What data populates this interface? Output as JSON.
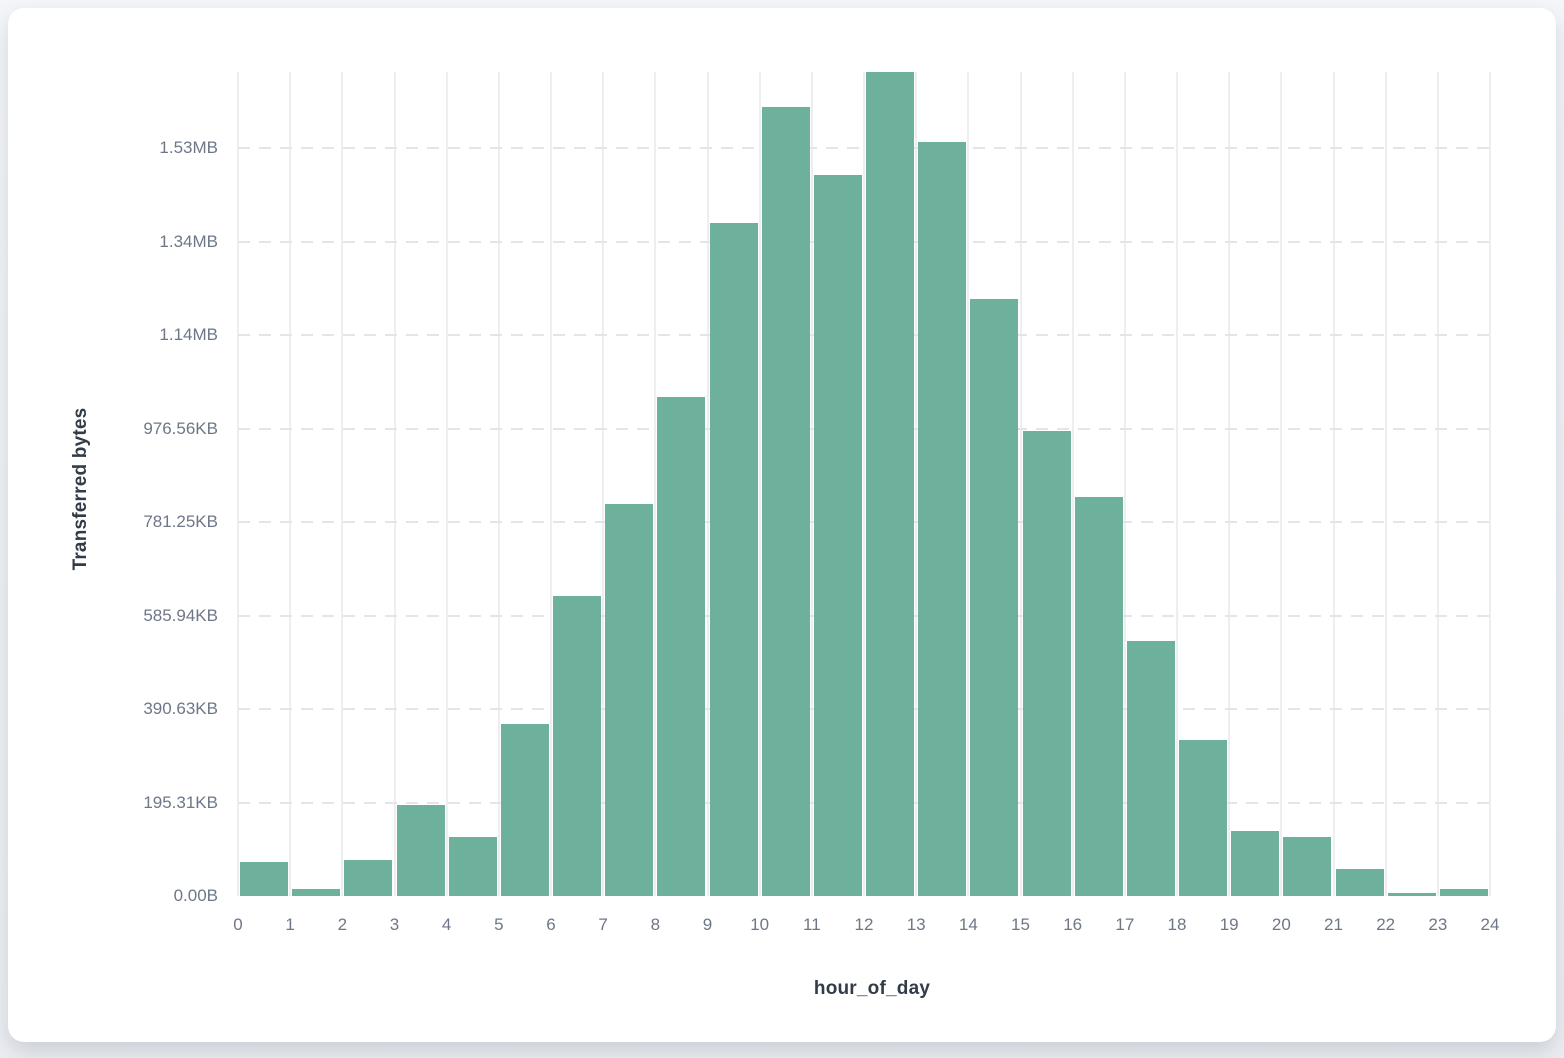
{
  "page": {
    "background_color": "#eef0f3",
    "card_background_color": "#ffffff"
  },
  "chart_data": {
    "type": "bar",
    "title": "",
    "xlabel": "hour_of_day",
    "ylabel": "Transferred bytes",
    "xlim": [
      0,
      24
    ],
    "ylim_bytes": [
      0,
      1763000
    ],
    "grid": "horizontal dashed + vertical solid",
    "legend_position": "none",
    "bin_edges": [
      0,
      1,
      2,
      3,
      4,
      5,
      6,
      7,
      8,
      9,
      10,
      11,
      12,
      13,
      14,
      15,
      16,
      17,
      18,
      19,
      20,
      21,
      22,
      23,
      24
    ],
    "x_tick_labels": [
      "0",
      "1",
      "2",
      "3",
      "4",
      "5",
      "6",
      "7",
      "8",
      "9",
      "10",
      "11",
      "12",
      "13",
      "14",
      "15",
      "16",
      "17",
      "18",
      "19",
      "20",
      "21",
      "22",
      "23",
      "24"
    ],
    "values_bytes": [
      73000,
      15000,
      77000,
      194000,
      126000,
      368000,
      641000,
      838000,
      1067000,
      1441000,
      1688000,
      1542000,
      1763000,
      1614000,
      1278000,
      996000,
      853000,
      545000,
      333000,
      139000,
      126000,
      58000,
      6000,
      15000
    ],
    "y_ticks": [
      {
        "label": "0.00B",
        "bytes": 0
      },
      {
        "label": "195.31KB",
        "bytes": 200000
      },
      {
        "label": "390.63KB",
        "bytes": 400000
      },
      {
        "label": "585.94KB",
        "bytes": 600000
      },
      {
        "label": "781.25KB",
        "bytes": 800000
      },
      {
        "label": "976.56KB",
        "bytes": 1000000
      },
      {
        "label": "1.14MB",
        "bytes": 1200000
      },
      {
        "label": "1.34MB",
        "bytes": 1400000
      },
      {
        "label": "1.53MB",
        "bytes": 1600000
      }
    ],
    "colors": {
      "bar": "#6db19c",
      "vertical_gridline": "#eceef2",
      "horizontal_gridline": "#e2e5ea",
      "tick_label": "#6e7787",
      "axis_title": "#323c48"
    }
  }
}
